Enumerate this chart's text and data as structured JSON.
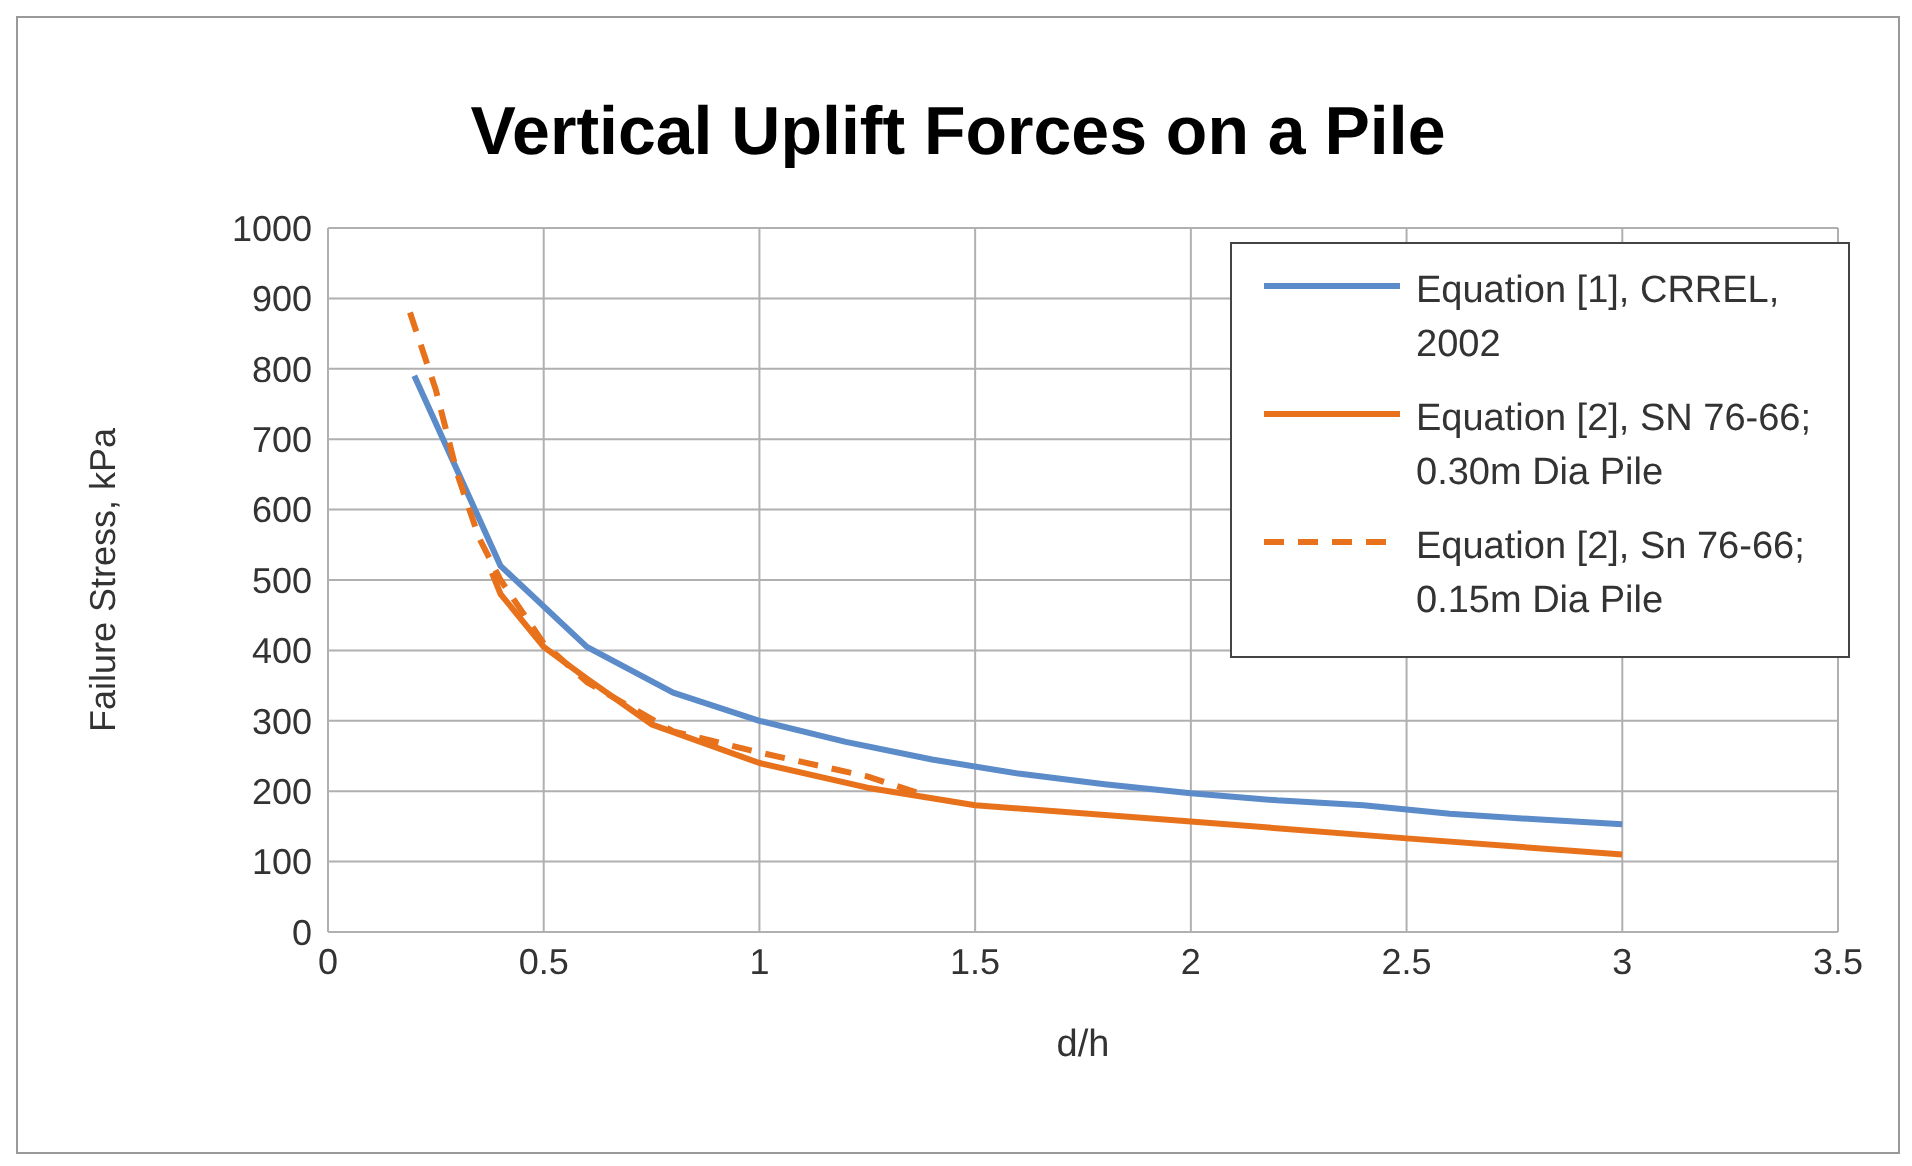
{
  "chart_data": {
    "type": "line",
    "title": "Vertical Uplift Forces on a Pile",
    "xlabel": "d/h",
    "ylabel": "Failure Stress, kPa",
    "xlim": [
      0,
      3.5
    ],
    "xticks": [
      0,
      0.5,
      1,
      1.5,
      2,
      2.5,
      3,
      3.5
    ],
    "ylim": [
      0,
      1000
    ],
    "yticks": [
      0,
      100,
      200,
      300,
      400,
      500,
      600,
      700,
      800,
      900,
      1000
    ],
    "grid": true,
    "legend": "top right",
    "marker": "none",
    "series": [
      {
        "name": "Equation [1], CRREL, 2002",
        "color": "#5b8bc9",
        "line_style": "solid",
        "x": [
          0.2,
          0.4,
          0.6,
          0.8,
          1,
          1.2,
          1.4,
          1.6,
          1.8,
          2,
          2.2,
          2.4,
          2.6,
          2.8,
          3
        ],
        "values": [
          790,
          520,
          405,
          340,
          300,
          270,
          245,
          225,
          210,
          197,
          187,
          180,
          168,
          160,
          153
        ]
      },
      {
        "name": "Equation [2], SN 76-66; 0.30m Dia Pile",
        "color": "#e8711c",
        "line_style": "solid",
        "x": [
          0.38,
          0.4,
          0.5,
          0.6,
          0.75,
          1,
          1.25,
          1.5,
          2,
          2.5,
          3
        ],
        "values": [
          510,
          480,
          405,
          360,
          295,
          240,
          205,
          180,
          157,
          133,
          110
        ]
      },
      {
        "name": "Equation [2], Sn 76-66; 0.15m Dia Pile",
        "color": "#e8711c",
        "line_style": "dashed",
        "x": [
          0.19,
          0.25,
          0.3,
          0.35,
          0.4,
          0.5,
          0.6,
          0.8,
          1,
          1.25,
          1.39
        ],
        "values": [
          880,
          770,
          650,
          560,
          500,
          410,
          355,
          285,
          255,
          221,
          193
        ]
      }
    ]
  }
}
